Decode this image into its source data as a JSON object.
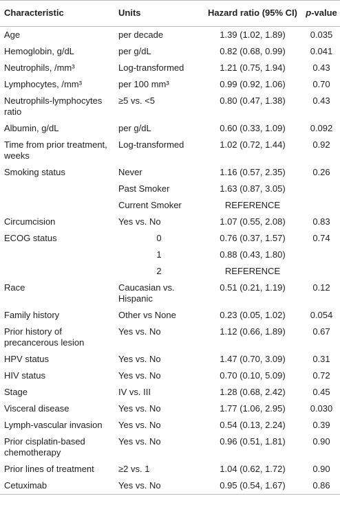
{
  "table": {
    "columns": [
      "Characteristic",
      "Units",
      "Hazard ratio (95% CI)",
      "p-value"
    ],
    "rows": [
      [
        "Age",
        "per decade",
        "1.39 (1.02, 1.89)",
        "0.035"
      ],
      [
        "Hemoglobin, g/dL",
        "per g/dL",
        "0.82 (0.68, 0.99)",
        "0.041"
      ],
      [
        "Neutrophils, /mm³",
        "Log-transformed",
        "1.21 (0.75, 1.94)",
        "0.43"
      ],
      [
        "Lymphocytes, /mm³",
        "per 100 mm³",
        "0.99 (0.92, 1.06)",
        "0.70"
      ],
      [
        "Neutrophils-lymphocytes ratio",
        "≥5 vs. <5",
        "0.80 (0.47, 1.38)",
        "0.43"
      ],
      [
        "Albumin, g/dL",
        "per g/dL",
        "0.60 (0.33, 1.09)",
        "0.092"
      ],
      [
        "Time from prior treatment, weeks",
        "Log-transformed",
        "1.02 (0.72, 1.44)",
        "0.92"
      ],
      [
        "Smoking status",
        "Never",
        "1.16 (0.57, 2.35)",
        "0.26"
      ],
      [
        null,
        "Past Smoker",
        "1.63 (0.87, 3.05)",
        null
      ],
      [
        null,
        "Current Smoker",
        "REFERENCE",
        null
      ],
      [
        "Circumcision",
        "Yes vs. No",
        "1.07 (0.55, 2.08)",
        "0.83"
      ],
      [
        "ECOG status",
        "0",
        "0.76 (0.37, 1.57)",
        "0.74"
      ],
      [
        null,
        "1",
        "0.88 (0.43, 1.80)",
        null
      ],
      [
        null,
        "2",
        "REFERENCE",
        null
      ],
      [
        "Race",
        "Caucasian vs. Hispanic",
        "0.51 (0.21, 1.19)",
        "0.12"
      ],
      [
        "Family history",
        "Other vs None",
        "0.23 (0.05, 1.02)",
        "0.054"
      ],
      [
        "Prior history of precancerous lesion",
        "Yes vs. No",
        "1.12 (0.66, 1.89)",
        "0.67"
      ],
      [
        "HPV status",
        "Yes vs. No",
        "1.47 (0.70, 3.09)",
        "0.31"
      ],
      [
        "HIV status",
        "Yes vs. No",
        "0.70 (0.10, 5.09)",
        "0.72"
      ],
      [
        "Stage",
        "IV vs. III",
        "1.28 (0.68, 2.42)",
        "0.45"
      ],
      [
        "Visceral disease",
        "Yes vs. No",
        "1.77 (1.06, 2.95)",
        "0.030"
      ],
      [
        "Lymph-vascular invasion",
        "Yes vs. No",
        "0.54 (0.13, 2.24)",
        "0.39"
      ],
      [
        "Prior cisplatin-based chemotherapy",
        "Yes vs. No",
        "0.96 (0.51, 1.81)",
        "0.90"
      ],
      [
        "Prior lines of treatment",
        "≥2 vs. 1",
        "1.04 (0.62, 1.72)",
        "0.90"
      ],
      [
        "Cetuximab",
        "Yes vs. No",
        "0.95 (0.54, 1.67)",
        "0.86"
      ]
    ]
  }
}
